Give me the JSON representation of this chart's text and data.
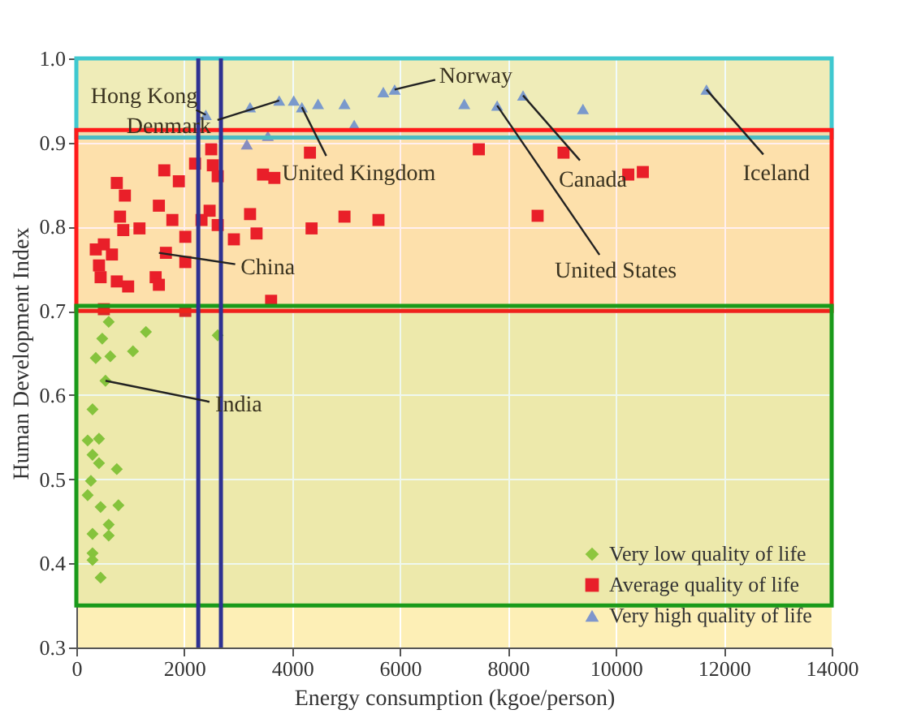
{
  "chart_data": {
    "type": "scatter",
    "xlabel": "Energy consumption (kgoe/person)",
    "ylabel": "Human Development Index",
    "xlim": [
      0,
      14000
    ],
    "xticks": [
      0,
      2000,
      4000,
      6000,
      8000,
      10000,
      12000,
      14000
    ],
    "ylim": [
      0.3,
      1.0
    ],
    "yticks": [
      0.3,
      0.4,
      0.5,
      0.6,
      0.7,
      0.8,
      0.9,
      {
        "value": 1,
        "label": "1.0"
      }
    ],
    "grid": true,
    "legend": "bottom right",
    "series": [
      {
        "name": "Very low quality of life",
        "color": "#8dc63f",
        "marker": "diamond",
        "x": [
          600,
          480,
          1290,
          360,
          630,
          1050,
          2620,
          540,
          300,
          210,
          420,
          300,
          420,
          750,
          270,
          210,
          450,
          780,
          600,
          600,
          300,
          300,
          300,
          450
        ],
        "values": [
          0.687,
          0.667,
          0.675,
          0.644,
          0.646,
          0.652,
          0.671,
          0.617,
          0.583,
          0.546,
          0.548,
          0.529,
          0.519,
          0.512,
          0.498,
          0.481,
          0.467,
          0.469,
          0.446,
          0.433,
          0.435,
          0.412,
          0.404,
          0.383
        ]
      },
      {
        "name": "Average quality of life",
        "color": "#e8202a",
        "marker": "square",
        "x": [
          2500,
          2200,
          2530,
          2620,
          1630,
          1900,
          750,
          900,
          1530,
          1780,
          810,
          2470,
          2320,
          2620,
          1170,
          510,
          660,
          450,
          750,
          960,
          1470,
          1530,
          2020,
          2020,
          1660,
          2920,
          3220,
          3340,
          3460,
          3670,
          4330,
          4360,
          4970,
          5600,
          3610,
          2020,
          510,
          870,
          360,
          420,
          7460,
          9030,
          8550,
          10230,
          10500
        ],
        "values": [
          0.892,
          0.875,
          0.873,
          0.86,
          0.867,
          0.854,
          0.852,
          0.837,
          0.825,
          0.808,
          0.812,
          0.819,
          0.808,
          0.802,
          0.798,
          0.779,
          0.767,
          0.74,
          0.735,
          0.729,
          0.74,
          0.731,
          0.788,
          0.758,
          0.769,
          0.785,
          0.815,
          0.792,
          0.862,
          0.858,
          0.888,
          0.798,
          0.812,
          0.808,
          0.712,
          0.7,
          0.702,
          0.796,
          0.773,
          0.754,
          0.892,
          0.888,
          0.813,
          0.862,
          0.865
        ]
      },
      {
        "name": "Very high quality of life",
        "color": "#7f96cc",
        "marker": "triangle",
        "x": [
          2400,
          3220,
          3160,
          3550,
          3760,
          4030,
          4180,
          4480,
          4970,
          5150,
          5690,
          5900,
          7190,
          7800,
          8280,
          9390,
          11680
        ],
        "values": [
          0.933,
          0.942,
          0.898,
          0.908,
          0.95,
          0.95,
          0.942,
          0.946,
          0.946,
          0.921,
          0.96,
          0.963,
          0.946,
          0.944,
          0.956,
          0.94,
          0.963
        ]
      }
    ],
    "annotations": [
      {
        "text": "Hong Kong",
        "x": 2400,
        "y": 0.933
      },
      {
        "text": "Denmark",
        "x": 3760,
        "y": 0.95
      },
      {
        "text": "United Kingdom",
        "x": 4180,
        "y": 0.942
      },
      {
        "text": "Norway",
        "x": 5900,
        "y": 0.963
      },
      {
        "text": "Canada",
        "x": 8280,
        "y": 0.956
      },
      {
        "text": "United States",
        "x": 7800,
        "y": 0.944
      },
      {
        "text": "Iceland",
        "x": 11680,
        "y": 0.963
      },
      {
        "text": "China",
        "x": 1530,
        "y": 0.769
      },
      {
        "text": "India",
        "x": 540,
        "y": 0.617
      }
    ],
    "ref_lines": [
      {
        "axis": "x",
        "value": 2260,
        "color": "#2e3192"
      },
      {
        "axis": "x",
        "value": 2680,
        "color": "#2e3192"
      }
    ],
    "bands": [
      {
        "axis": "y",
        "from": 0.906,
        "to": 1.0,
        "color": "#3fc8d0"
      },
      {
        "axis": "y",
        "from": 0.7,
        "to": 0.915,
        "color": "#ff1a1a"
      },
      {
        "axis": "y",
        "from": 0.35,
        "to": 0.706,
        "color": "#1a9a1a"
      }
    ]
  }
}
